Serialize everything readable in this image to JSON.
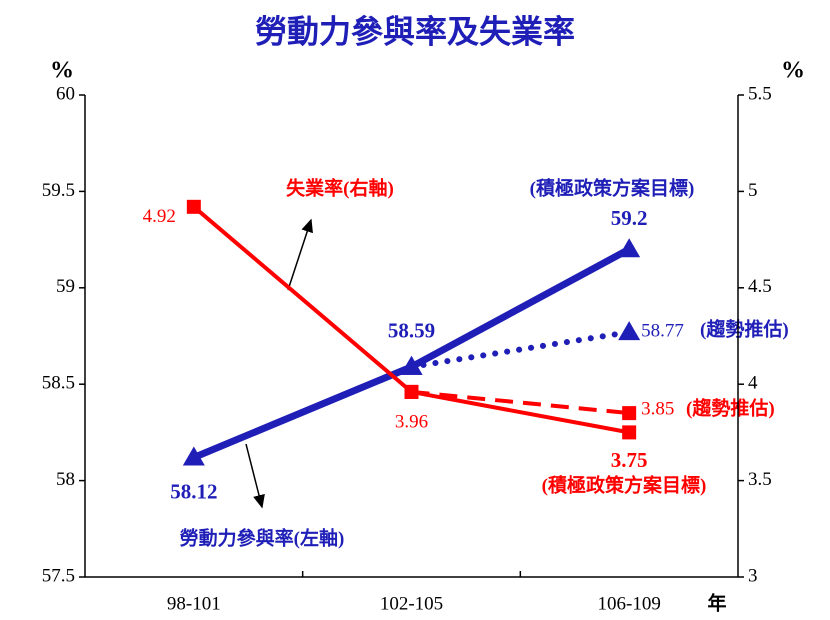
{
  "chart_data": {
    "type": "line",
    "title": "勞動力參與率及失業率",
    "y_label": "%",
    "y2_label": "%",
    "x_label": "年",
    "categories": [
      "98-101",
      "102-105",
      "106-109"
    ],
    "ylim": [
      57.5,
      60
    ],
    "yticks": [
      57.5,
      58,
      58.5,
      59,
      59.5,
      60
    ],
    "y2lim": [
      3,
      5.5
    ],
    "y2ticks": [
      3,
      3.5,
      4,
      4.5,
      5,
      5.5
    ],
    "series": [
      {
        "name": "勞動力參與率(左軸)",
        "color": "#1f1fb8",
        "axis": "y",
        "linestyle": "solid",
        "marker": "triangle",
        "values": [
          58.12,
          58.59,
          59.2
        ]
      },
      {
        "name": "(趨勢推估)",
        "color": "#1f1fb8",
        "axis": "y",
        "linestyle": "dotted",
        "marker": "triangle",
        "values": [
          null,
          58.59,
          58.77
        ]
      },
      {
        "name": "失業率(右軸)",
        "color": "#ff0000",
        "axis": "y2",
        "linestyle": "solid",
        "marker": "square",
        "values": [
          4.92,
          3.96,
          3.75
        ]
      },
      {
        "name": "(趨勢推估)",
        "color": "#ff0000",
        "axis": "y2",
        "linestyle": "dashed",
        "marker": "square",
        "values": [
          null,
          3.96,
          3.85
        ]
      }
    ],
    "annotations": [
      "(積極政策方案目標)",
      "(積極政策方案目標)"
    ]
  }
}
